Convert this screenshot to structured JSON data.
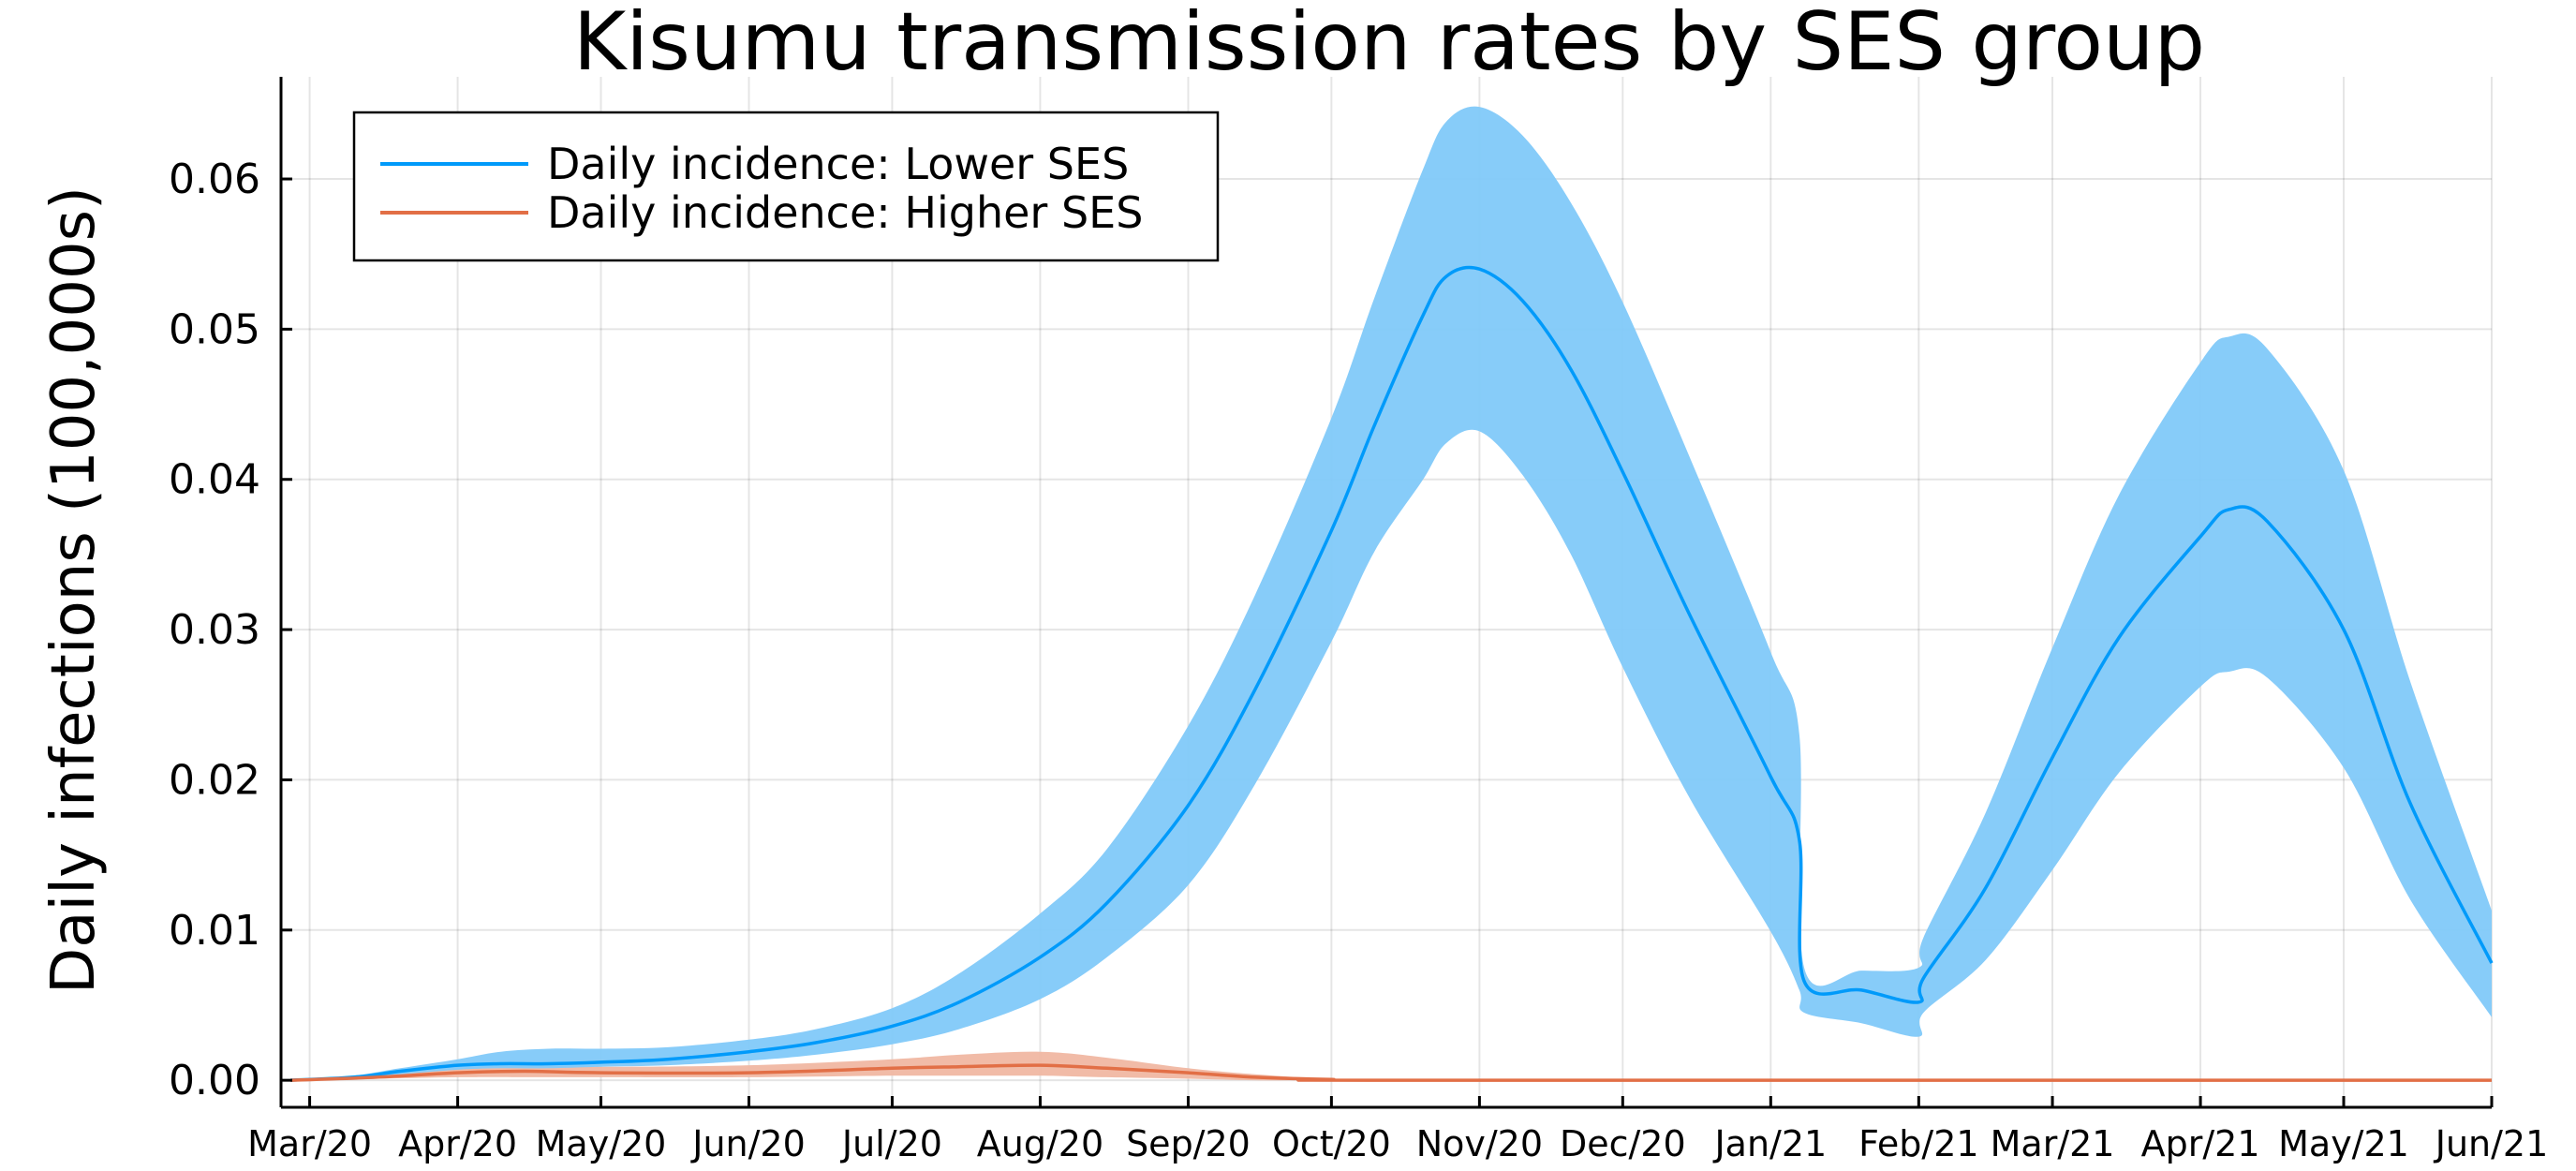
{
  "chart_data": {
    "type": "line",
    "title": "Kisumu transmission rates by SES group",
    "xlabel": "",
    "ylabel": "Daily infections (100,000s)",
    "x_ticks": [
      "Mar/20",
      "Apr/20",
      "May/20",
      "Jun/20",
      "Jul/20",
      "Aug/20",
      "Sep/20",
      "Oct/20",
      "Nov/20",
      "Dec/20",
      "Jan/21",
      "Feb/21",
      "Mar/21",
      "Apr/21",
      "May/21",
      "Jun/21"
    ],
    "x_tick_dates": [
      "2020-03-01",
      "2020-04-01",
      "2020-05-01",
      "2020-06-01",
      "2020-07-01",
      "2020-08-01",
      "2020-09-01",
      "2020-10-01",
      "2020-11-01",
      "2020-12-01",
      "2021-01-01",
      "2021-02-01",
      "2021-03-01",
      "2021-04-01",
      "2021-05-01",
      "2021-06-01"
    ],
    "xlim": [
      "2020-02-24",
      "2021-06-01"
    ],
    "y_ticks": [
      "0.00",
      "0.01",
      "0.02",
      "0.03",
      "0.04",
      "0.05",
      "0.06"
    ],
    "ylim": [
      -0.0018,
      0.0668
    ],
    "grid": true,
    "legend_position": "top-left",
    "series": [
      {
        "name": "Daily incidence: Lower SES",
        "color": "#009AFA",
        "band_color": "#81C9F9",
        "x": [
          "2020-02-26",
          "2020-03-10",
          "2020-03-20",
          "2020-04-01",
          "2020-04-10",
          "2020-04-20",
          "2020-05-01",
          "2020-05-15",
          "2020-06-01",
          "2020-06-15",
          "2020-07-01",
          "2020-07-15",
          "2020-08-01",
          "2020-08-15",
          "2020-09-01",
          "2020-09-15",
          "2020-10-01",
          "2020-10-10",
          "2020-10-20",
          "2020-10-25",
          "2020-11-01",
          "2020-11-10",
          "2020-11-20",
          "2020-12-01",
          "2020-12-15",
          "2021-01-01",
          "2021-01-07",
          "2021-01-08",
          "2021-01-20",
          "2021-02-01",
          "2021-02-02",
          "2021-02-15",
          "2021-03-01",
          "2021-03-15",
          "2021-04-01",
          "2021-04-07",
          "2021-04-15",
          "2021-05-01",
          "2021-05-15",
          "2021-06-01"
        ],
        "values": [
          0.0,
          0.0002,
          0.0006,
          0.001,
          0.0011,
          0.0011,
          0.0012,
          0.0014,
          0.0019,
          0.0025,
          0.0036,
          0.0052,
          0.0082,
          0.0118,
          0.0183,
          0.026,
          0.0366,
          0.0436,
          0.0508,
          0.0535,
          0.054,
          0.0519,
          0.0474,
          0.0405,
          0.031,
          0.0202,
          0.016,
          0.0066,
          0.006,
          0.0052,
          0.0068,
          0.0128,
          0.0215,
          0.0295,
          0.0362,
          0.038,
          0.0372,
          0.03,
          0.0184,
          0.0078
        ],
        "lower": [
          0.0,
          0.0001,
          0.0004,
          0.0007,
          0.0008,
          0.0008,
          0.0009,
          0.001,
          0.0013,
          0.0017,
          0.0024,
          0.0034,
          0.0054,
          0.0082,
          0.013,
          0.0197,
          0.0292,
          0.0352,
          0.0399,
          0.0424,
          0.0432,
          0.0403,
          0.0351,
          0.0275,
          0.0188,
          0.0099,
          0.006,
          0.0045,
          0.0038,
          0.0029,
          0.0045,
          0.008,
          0.014,
          0.0205,
          0.0262,
          0.0272,
          0.0268,
          0.0208,
          0.012,
          0.0042
        ],
        "upper": [
          0.0,
          0.0003,
          0.0008,
          0.0014,
          0.0019,
          0.0021,
          0.0021,
          0.0022,
          0.0027,
          0.0034,
          0.0048,
          0.0071,
          0.0111,
          0.0154,
          0.0236,
          0.0323,
          0.0441,
          0.0521,
          0.0605,
          0.0638,
          0.0648,
          0.0629,
          0.0585,
          0.0518,
          0.0415,
          0.0285,
          0.023,
          0.0075,
          0.0073,
          0.0075,
          0.0095,
          0.0178,
          0.0288,
          0.039,
          0.0478,
          0.0495,
          0.0487,
          0.0406,
          0.0265,
          0.0113
        ]
      },
      {
        "name": "Daily incidence: Higher SES",
        "color": "#E26F46",
        "band_color": "#F0B7A2",
        "x": [
          "2020-02-26",
          "2020-03-15",
          "2020-04-01",
          "2020-04-15",
          "2020-05-01",
          "2020-06-01",
          "2020-07-01",
          "2020-07-15",
          "2020-08-01",
          "2020-08-15",
          "2020-09-01",
          "2020-09-15",
          "2020-10-01",
          "2020-10-15",
          "2021-06-01"
        ],
        "values": [
          0.0,
          0.0002,
          0.0005,
          0.0006,
          0.0005,
          0.0005,
          0.0008,
          0.0009,
          0.001,
          0.0008,
          0.0005,
          0.0002,
          5e-05,
          0.0,
          0.0
        ],
        "lower": [
          0.0,
          0.0001,
          0.0002,
          0.0002,
          0.0002,
          0.0002,
          0.0003,
          0.0003,
          0.0003,
          0.0002,
          0.0001,
          0.0,
          0.0,
          0.0,
          0.0
        ],
        "upper": [
          0.0,
          0.0003,
          0.0008,
          0.001,
          0.0009,
          0.001,
          0.0014,
          0.0017,
          0.0019,
          0.0015,
          0.0008,
          0.0004,
          0.0001,
          0.0,
          0.0
        ]
      }
    ]
  }
}
